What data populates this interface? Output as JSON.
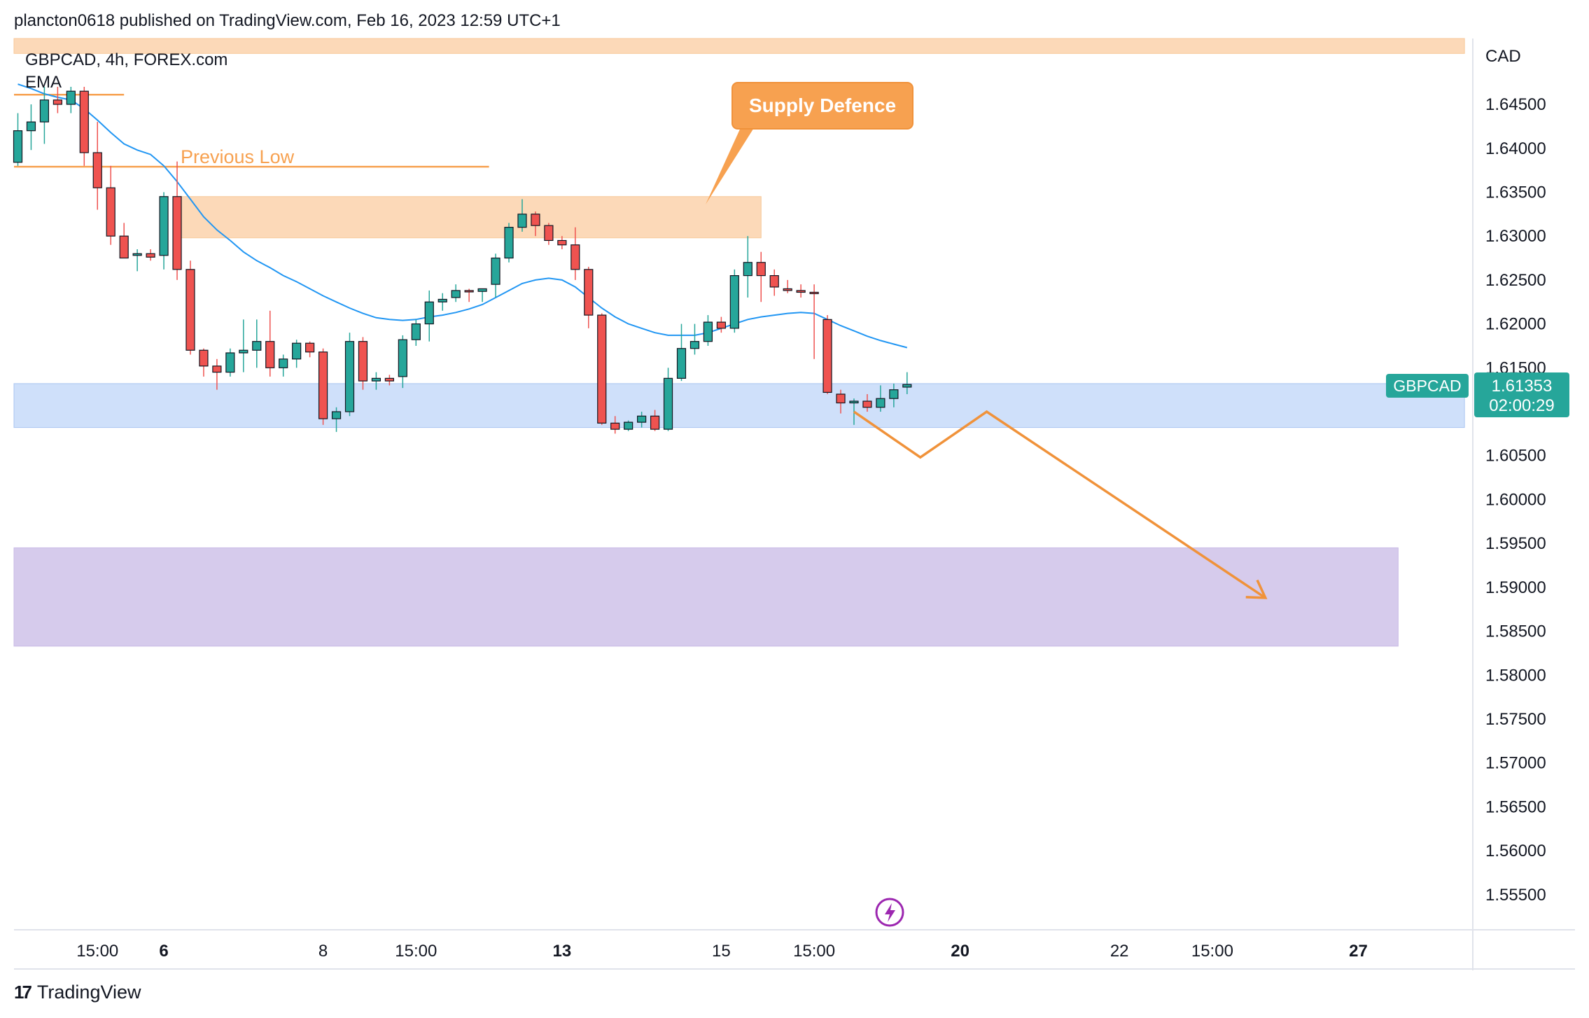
{
  "header": {
    "publisher_line": "plancton0618 published on TradingView.com, Feb 16, 2023 12:59 UTC+1"
  },
  "legend": {
    "symbol_line": "GBPCAD, 4h, FOREX.com",
    "indicator": "EMA"
  },
  "annotations": {
    "supply_label": "Supply Defence",
    "previous_low_label": "Previous Low"
  },
  "price_tag": {
    "symbol": "GBPCAD",
    "price": "1.61353",
    "countdown": "02:00:29"
  },
  "footer": {
    "brand": "TradingView"
  },
  "colors": {
    "up": "#26a69a",
    "down": "#ef5350",
    "ema": "#2196f3",
    "orange": "#f7a150",
    "supply_zone": "#fcd9b8",
    "demand_zone": "#cfe0fa",
    "target_zone": "#d6cbec"
  },
  "chart_data": {
    "type": "candlestick",
    "currency": "CAD",
    "ylim": [
      1.551,
      1.6525
    ],
    "y_ticks": [
      "1.64500",
      "1.64000",
      "1.63500",
      "1.63000",
      "1.62500",
      "1.62000",
      "1.61500",
      "1.61000",
      "1.60500",
      "1.60000",
      "1.59500",
      "1.59000",
      "1.58500",
      "1.58000",
      "1.57500",
      "1.57000",
      "1.56500",
      "1.56000",
      "1.55500"
    ],
    "x_ticks": [
      {
        "label": "15:00",
        "i": 6,
        "bold": false
      },
      {
        "label": "6",
        "i": 11,
        "bold": true
      },
      {
        "label": "8",
        "i": 23,
        "bold": false
      },
      {
        "label": "15:00",
        "i": 30,
        "bold": false
      },
      {
        "label": "13",
        "i": 41,
        "bold": true
      },
      {
        "label": "15",
        "i": 53,
        "bold": false
      },
      {
        "label": "15:00",
        "i": 60,
        "bold": false
      },
      {
        "label": "20",
        "i": 71,
        "bold": true
      },
      {
        "label": "22",
        "i": 83,
        "bold": false
      },
      {
        "label": "15:00",
        "i": 90,
        "bold": false
      },
      {
        "label": "27",
        "i": 101,
        "bold": true
      }
    ],
    "candles": [
      [
        1.6384,
        1.644,
        1.638,
        1.642
      ],
      [
        1.642,
        1.645,
        1.6398,
        1.643
      ],
      [
        1.643,
        1.647,
        1.6405,
        1.6455
      ],
      [
        1.6455,
        1.647,
        1.644,
        1.645
      ],
      [
        1.645,
        1.647,
        1.644,
        1.6465
      ],
      [
        1.6465,
        1.647,
        1.638,
        1.6395
      ],
      [
        1.6395,
        1.643,
        1.633,
        1.6355
      ],
      [
        1.6355,
        1.638,
        1.629,
        1.63
      ],
      [
        1.63,
        1.6315,
        1.6275,
        1.6275
      ],
      [
        1.6278,
        1.6285,
        1.626,
        1.628
      ],
      [
        1.628,
        1.6285,
        1.6272,
        1.6276
      ],
      [
        1.6278,
        1.635,
        1.6262,
        1.6345
      ],
      [
        1.6345,
        1.6385,
        1.625,
        1.6262
      ],
      [
        1.6262,
        1.6272,
        1.6165,
        1.617
      ],
      [
        1.617,
        1.6172,
        1.614,
        1.6152
      ],
      [
        1.6152,
        1.616,
        1.6125,
        1.6145
      ],
      [
        1.6145,
        1.6172,
        1.614,
        1.6167
      ],
      [
        1.6167,
        1.6205,
        1.6145,
        1.617
      ],
      [
        1.617,
        1.6205,
        1.615,
        1.618
      ],
      [
        1.618,
        1.6215,
        1.614,
        1.615
      ],
      [
        1.615,
        1.6165,
        1.614,
        1.616
      ],
      [
        1.616,
        1.6182,
        1.615,
        1.6178
      ],
      [
        1.6178,
        1.618,
        1.6162,
        1.6168
      ],
      [
        1.6168,
        1.6172,
        1.6085,
        1.6092
      ],
      [
        1.6092,
        1.6105,
        1.6077,
        1.61
      ],
      [
        1.61,
        1.619,
        1.6095,
        1.618
      ],
      [
        1.618,
        1.6185,
        1.6125,
        1.6135
      ],
      [
        1.6135,
        1.6145,
        1.6125,
        1.6138
      ],
      [
        1.6138,
        1.6142,
        1.613,
        1.6135
      ],
      [
        1.614,
        1.6187,
        1.6127,
        1.6182
      ],
      [
        1.6182,
        1.6205,
        1.6175,
        1.62
      ],
      [
        1.62,
        1.6238,
        1.618,
        1.6225
      ],
      [
        1.6225,
        1.6235,
        1.6215,
        1.6228
      ],
      [
        1.623,
        1.6245,
        1.6225,
        1.6238
      ],
      [
        1.6238,
        1.624,
        1.6225,
        1.6237
      ],
      [
        1.6237,
        1.624,
        1.6225,
        1.624
      ],
      [
        1.6245,
        1.628,
        1.623,
        1.6275
      ],
      [
        1.6275,
        1.6315,
        1.627,
        1.631
      ],
      [
        1.631,
        1.6342,
        1.6305,
        1.6325
      ],
      [
        1.6325,
        1.6328,
        1.63,
        1.6312
      ],
      [
        1.6312,
        1.6315,
        1.629,
        1.6295
      ],
      [
        1.6295,
        1.63,
        1.6285,
        1.629
      ],
      [
        1.629,
        1.631,
        1.625,
        1.6262
      ],
      [
        1.6262,
        1.6265,
        1.6195,
        1.621
      ],
      [
        1.621,
        1.6212,
        1.6085,
        1.6087
      ],
      [
        1.6087,
        1.6095,
        1.6075,
        1.608
      ],
      [
        1.608,
        1.609,
        1.6078,
        1.6088
      ],
      [
        1.6088,
        1.61,
        1.6082,
        1.6095
      ],
      [
        1.6095,
        1.6102,
        1.6078,
        1.608
      ],
      [
        1.608,
        1.615,
        1.6078,
        1.6138
      ],
      [
        1.6138,
        1.62,
        1.6135,
        1.6172
      ],
      [
        1.6172,
        1.62,
        1.6165,
        1.618
      ],
      [
        1.618,
        1.621,
        1.6175,
        1.6202
      ],
      [
        1.6202,
        1.6208,
        1.619,
        1.6195
      ],
      [
        1.6195,
        1.6262,
        1.619,
        1.6255
      ],
      [
        1.6255,
        1.63,
        1.623,
        1.627
      ],
      [
        1.627,
        1.6282,
        1.6225,
        1.6255
      ],
      [
        1.6255,
        1.6262,
        1.6232,
        1.6242
      ],
      [
        1.624,
        1.625,
        1.6235,
        1.6238
      ],
      [
        1.6238,
        1.6245,
        1.623,
        1.6236
      ],
      [
        1.6236,
        1.6245,
        1.616,
        1.6235
      ],
      [
        1.6205,
        1.621,
        1.612,
        1.6122
      ],
      [
        1.612,
        1.6125,
        1.6098,
        1.611
      ],
      [
        1.611,
        1.6115,
        1.6085,
        1.6112
      ],
      [
        1.6112,
        1.612,
        1.61,
        1.6105
      ],
      [
        1.6105,
        1.613,
        1.61,
        1.6115
      ],
      [
        1.6115,
        1.6132,
        1.6105,
        1.6125
      ],
      [
        1.6128,
        1.6145,
        1.612,
        1.6131
      ]
    ],
    "ema": [
      1.6473,
      1.6468,
      1.6462,
      1.6458,
      1.6455,
      1.6445,
      1.6432,
      1.6418,
      1.6405,
      1.6398,
      1.6393,
      1.638,
      1.6362,
      1.6342,
      1.6322,
      1.6307,
      1.6295,
      1.6282,
      1.6272,
      1.6264,
      1.6255,
      1.6248,
      1.624,
      1.6232,
      1.6225,
      1.6218,
      1.6212,
      1.6207,
      1.6205,
      1.6204,
      1.6205,
      1.6208,
      1.621,
      1.6213,
      1.6217,
      1.6222,
      1.623,
      1.6238,
      1.6246,
      1.625,
      1.6252,
      1.625,
      1.6242,
      1.623,
      1.6218,
      1.6208,
      1.62,
      1.6195,
      1.619,
      1.6187,
      1.6187,
      1.6187,
      1.619,
      1.6195,
      1.62,
      1.6205,
      1.6208,
      1.621,
      1.6212,
      1.6213,
      1.6212,
      1.6205,
      1.6198,
      1.6192,
      1.6186,
      1.6181,
      1.6177,
      1.6173
    ],
    "zones": [
      {
        "name": "supply",
        "i0": 12,
        "i1": 56,
        "y0": 1.6345,
        "y1": 1.6298
      },
      {
        "name": "demand",
        "i0": -1,
        "i1": 109,
        "y0": 1.6132,
        "y1": 1.6082
      },
      {
        "name": "target",
        "i0": -1,
        "i1": 104,
        "y0": 1.5945,
        "y1": 1.5833
      },
      {
        "name": "top-band",
        "i0": -1,
        "i1": 109,
        "y0": 1.6525,
        "y1": 1.6508
      }
    ],
    "lines": [
      {
        "name": "previous-low",
        "i0": -1,
        "i1": 35.5,
        "y": 1.6379
      },
      {
        "name": "top-level",
        "i0": -1,
        "i1": 8,
        "y": 1.6461
      }
    ],
    "projection": [
      [
        63,
        1.61
      ],
      [
        68,
        1.6048
      ],
      [
        73,
        1.61
      ],
      [
        94,
        1.5888
      ]
    ]
  }
}
